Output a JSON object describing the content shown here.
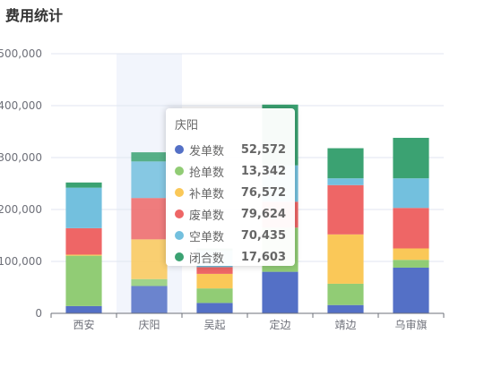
{
  "chart_data": {
    "type": "bar",
    "stacked": true,
    "title": "费用统计",
    "categories": [
      "西安",
      "庆阳",
      "吴起",
      "定边",
      "靖边",
      "乌审旗"
    ],
    "ylim": [
      0,
      500000
    ],
    "yticks": [
      0,
      100000,
      200000,
      300000,
      400000,
      500000
    ],
    "ytick_labels": [
      "0",
      "100,000",
      "200,000",
      "300,000",
      "400,000",
      "500,000"
    ],
    "grid": true,
    "highlighted_category": "庆阳",
    "series": [
      {
        "name": "发单数",
        "color": "#5470c6",
        "values": [
          14000,
          52572,
          20000,
          80000,
          16000,
          88000
        ]
      },
      {
        "name": "抢单数",
        "color": "#91cc75",
        "values": [
          97000,
          13342,
          28000,
          85000,
          41000,
          15000
        ]
      },
      {
        "name": "补单数",
        "color": "#fac858",
        "values": [
          2000,
          76572,
          28000,
          0,
          95000,
          22000
        ]
      },
      {
        "name": "废单数",
        "color": "#ee6666",
        "values": [
          51000,
          79624,
          13000,
          50000,
          95000,
          78000
        ]
      },
      {
        "name": "空单数",
        "color": "#73c0de",
        "values": [
          78000,
          70435,
          32000,
          70000,
          13000,
          57000
        ]
      },
      {
        "name": "闭合数",
        "color": "#3ba272",
        "values": [
          10000,
          17603,
          4000,
          117000,
          58000,
          78000
        ]
      }
    ]
  },
  "tooltip": {
    "title": "庆阳",
    "rows": [
      {
        "name": "发单数",
        "value": "52,572",
        "color": "#5470c6"
      },
      {
        "name": "抢单数",
        "value": "13,342",
        "color": "#91cc75"
      },
      {
        "name": "补单数",
        "value": "76,572",
        "color": "#fac858"
      },
      {
        "name": "废单数",
        "value": "79,624",
        "color": "#ee6666"
      },
      {
        "name": "空单数",
        "value": "70,435",
        "color": "#73c0de"
      },
      {
        "name": "闭合数",
        "value": "17,603",
        "color": "#3ba272"
      }
    ]
  }
}
